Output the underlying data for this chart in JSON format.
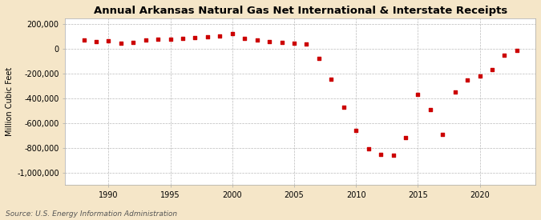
{
  "title": "Annual Arkansas Natural Gas Net International & Interstate Receipts",
  "ylabel": "Million Cubic Feet",
  "source": "Source: U.S. Energy Information Administration",
  "background_color": "#f5e6c8",
  "plot_background_color": "#ffffff",
  "marker_color": "#cc0000",
  "grid_color": "#aaaaaa",
  "years": [
    1988,
    1989,
    1990,
    1991,
    1992,
    1993,
    1994,
    1995,
    1996,
    1997,
    1998,
    1999,
    2000,
    2001,
    2002,
    2003,
    2004,
    2005,
    2006,
    2007,
    2008,
    2009,
    2010,
    2011,
    2012,
    2013,
    2014,
    2015,
    2016,
    2017,
    2018,
    2019,
    2020,
    2021,
    2022,
    2023
  ],
  "values": [
    75000,
    60000,
    68000,
    45000,
    55000,
    72000,
    78000,
    80000,
    88000,
    92000,
    97000,
    105000,
    122000,
    83000,
    72000,
    62000,
    52000,
    48000,
    42000,
    -75000,
    -245000,
    -470000,
    -660000,
    -810000,
    -855000,
    -858000,
    -720000,
    -365000,
    -490000,
    -690000,
    -350000,
    -250000,
    -218000,
    -170000,
    -52000,
    -12000
  ],
  "ylim": [
    -1100000,
    250000
  ],
  "yticks": [
    200000,
    0,
    -200000,
    -400000,
    -600000,
    -800000,
    -1000000
  ],
  "xlim": [
    1986.5,
    2024.5
  ],
  "xticks": [
    1990,
    1995,
    2000,
    2005,
    2010,
    2015,
    2020
  ]
}
